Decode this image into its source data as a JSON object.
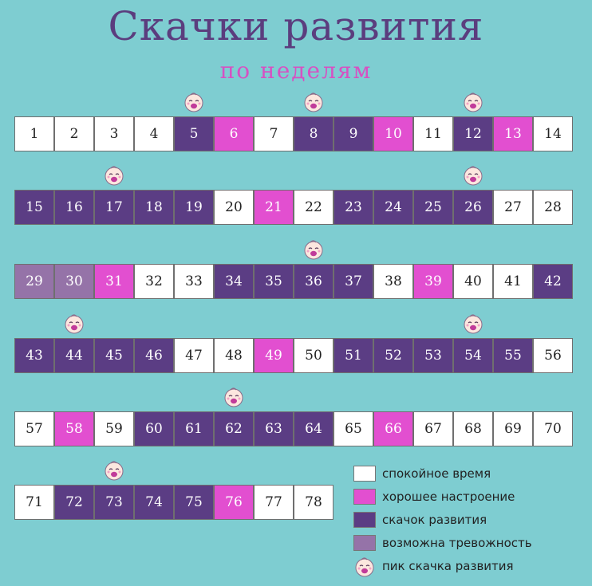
{
  "title": "Скачки развития",
  "subtitle": "по неделям",
  "colors": {
    "calm": "#ffffff",
    "good": "#e24fd0",
    "leap": "#5b3d84",
    "anxiety": "#9573a8",
    "background": "#7ecdd1"
  },
  "rows": [
    [
      {
        "n": "1",
        "t": "calm"
      },
      {
        "n": "2",
        "t": "calm"
      },
      {
        "n": "3",
        "t": "calm"
      },
      {
        "n": "4",
        "t": "calm"
      },
      {
        "n": "5",
        "t": "leap"
      },
      {
        "n": "6",
        "t": "good"
      },
      {
        "n": "7",
        "t": "calm"
      },
      {
        "n": "8",
        "t": "leap"
      },
      {
        "n": "9",
        "t": "leap"
      },
      {
        "n": "10",
        "t": "good"
      },
      {
        "n": "11",
        "t": "calm"
      },
      {
        "n": "12",
        "t": "leap"
      },
      {
        "n": "13",
        "t": "good"
      },
      {
        "n": "14",
        "t": "calm"
      }
    ],
    [
      {
        "n": "15",
        "t": "leap"
      },
      {
        "n": "16",
        "t": "leap"
      },
      {
        "n": "17",
        "t": "leap"
      },
      {
        "n": "18",
        "t": "leap"
      },
      {
        "n": "19",
        "t": "leap"
      },
      {
        "n": "20",
        "t": "calm"
      },
      {
        "n": "21",
        "t": "good"
      },
      {
        "n": "22",
        "t": "calm"
      },
      {
        "n": "23",
        "t": "leap"
      },
      {
        "n": "24",
        "t": "leap"
      },
      {
        "n": "25",
        "t": "leap"
      },
      {
        "n": "26",
        "t": "leap"
      },
      {
        "n": "27",
        "t": "calm"
      },
      {
        "n": "28",
        "t": "calm"
      }
    ],
    [
      {
        "n": "29",
        "t": "anx"
      },
      {
        "n": "30",
        "t": "anx"
      },
      {
        "n": "31",
        "t": "good"
      },
      {
        "n": "32",
        "t": "calm"
      },
      {
        "n": "33",
        "t": "calm"
      },
      {
        "n": "34",
        "t": "leap"
      },
      {
        "n": "35",
        "t": "leap"
      },
      {
        "n": "36",
        "t": "leap"
      },
      {
        "n": "37",
        "t": "leap"
      },
      {
        "n": "38",
        "t": "calm"
      },
      {
        "n": "39",
        "t": "good"
      },
      {
        "n": "40",
        "t": "calm"
      },
      {
        "n": "41",
        "t": "calm"
      },
      {
        "n": "42",
        "t": "leap"
      }
    ],
    [
      {
        "n": "43",
        "t": "leap"
      },
      {
        "n": "44",
        "t": "leap"
      },
      {
        "n": "45",
        "t": "leap"
      },
      {
        "n": "46",
        "t": "leap"
      },
      {
        "n": "47",
        "t": "calm"
      },
      {
        "n": "48",
        "t": "calm"
      },
      {
        "n": "49",
        "t": "good"
      },
      {
        "n": "50",
        "t": "calm"
      },
      {
        "n": "51",
        "t": "leap"
      },
      {
        "n": "52",
        "t": "leap"
      },
      {
        "n": "53",
        "t": "leap"
      },
      {
        "n": "54",
        "t": "leap"
      },
      {
        "n": "55",
        "t": "leap"
      },
      {
        "n": "56",
        "t": "calm"
      }
    ],
    [
      {
        "n": "57",
        "t": "calm"
      },
      {
        "n": "58",
        "t": "good"
      },
      {
        "n": "59",
        "t": "calm"
      },
      {
        "n": "60",
        "t": "leap"
      },
      {
        "n": "61",
        "t": "leap"
      },
      {
        "n": "62",
        "t": "leap"
      },
      {
        "n": "63",
        "t": "leap"
      },
      {
        "n": "64",
        "t": "leap"
      },
      {
        "n": "65",
        "t": "calm"
      },
      {
        "n": "66",
        "t": "good"
      },
      {
        "n": "67",
        "t": "calm"
      },
      {
        "n": "68",
        "t": "calm"
      },
      {
        "n": "69",
        "t": "calm"
      },
      {
        "n": "70",
        "t": "calm"
      }
    ],
    [
      {
        "n": "71",
        "t": "calm"
      },
      {
        "n": "72",
        "t": "leap"
      },
      {
        "n": "73",
        "t": "leap"
      },
      {
        "n": "74",
        "t": "leap"
      },
      {
        "n": "75",
        "t": "leap"
      },
      {
        "n": "76",
        "t": "good"
      },
      {
        "n": "77",
        "t": "calm"
      },
      {
        "n": "78",
        "t": "calm"
      }
    ]
  ],
  "peak_weeks": [
    "5",
    "8",
    "12",
    "17",
    "26",
    "36",
    "44",
    "54",
    "62",
    "73"
  ],
  "legend": {
    "calm": "спокойное время",
    "good": "хорошее настроение",
    "leap": "скачок развития",
    "anxiety": "возможна тревожность",
    "peak": "пик скачка развития"
  },
  "legend_icons": {
    "peak": "crying-baby-icon"
  }
}
